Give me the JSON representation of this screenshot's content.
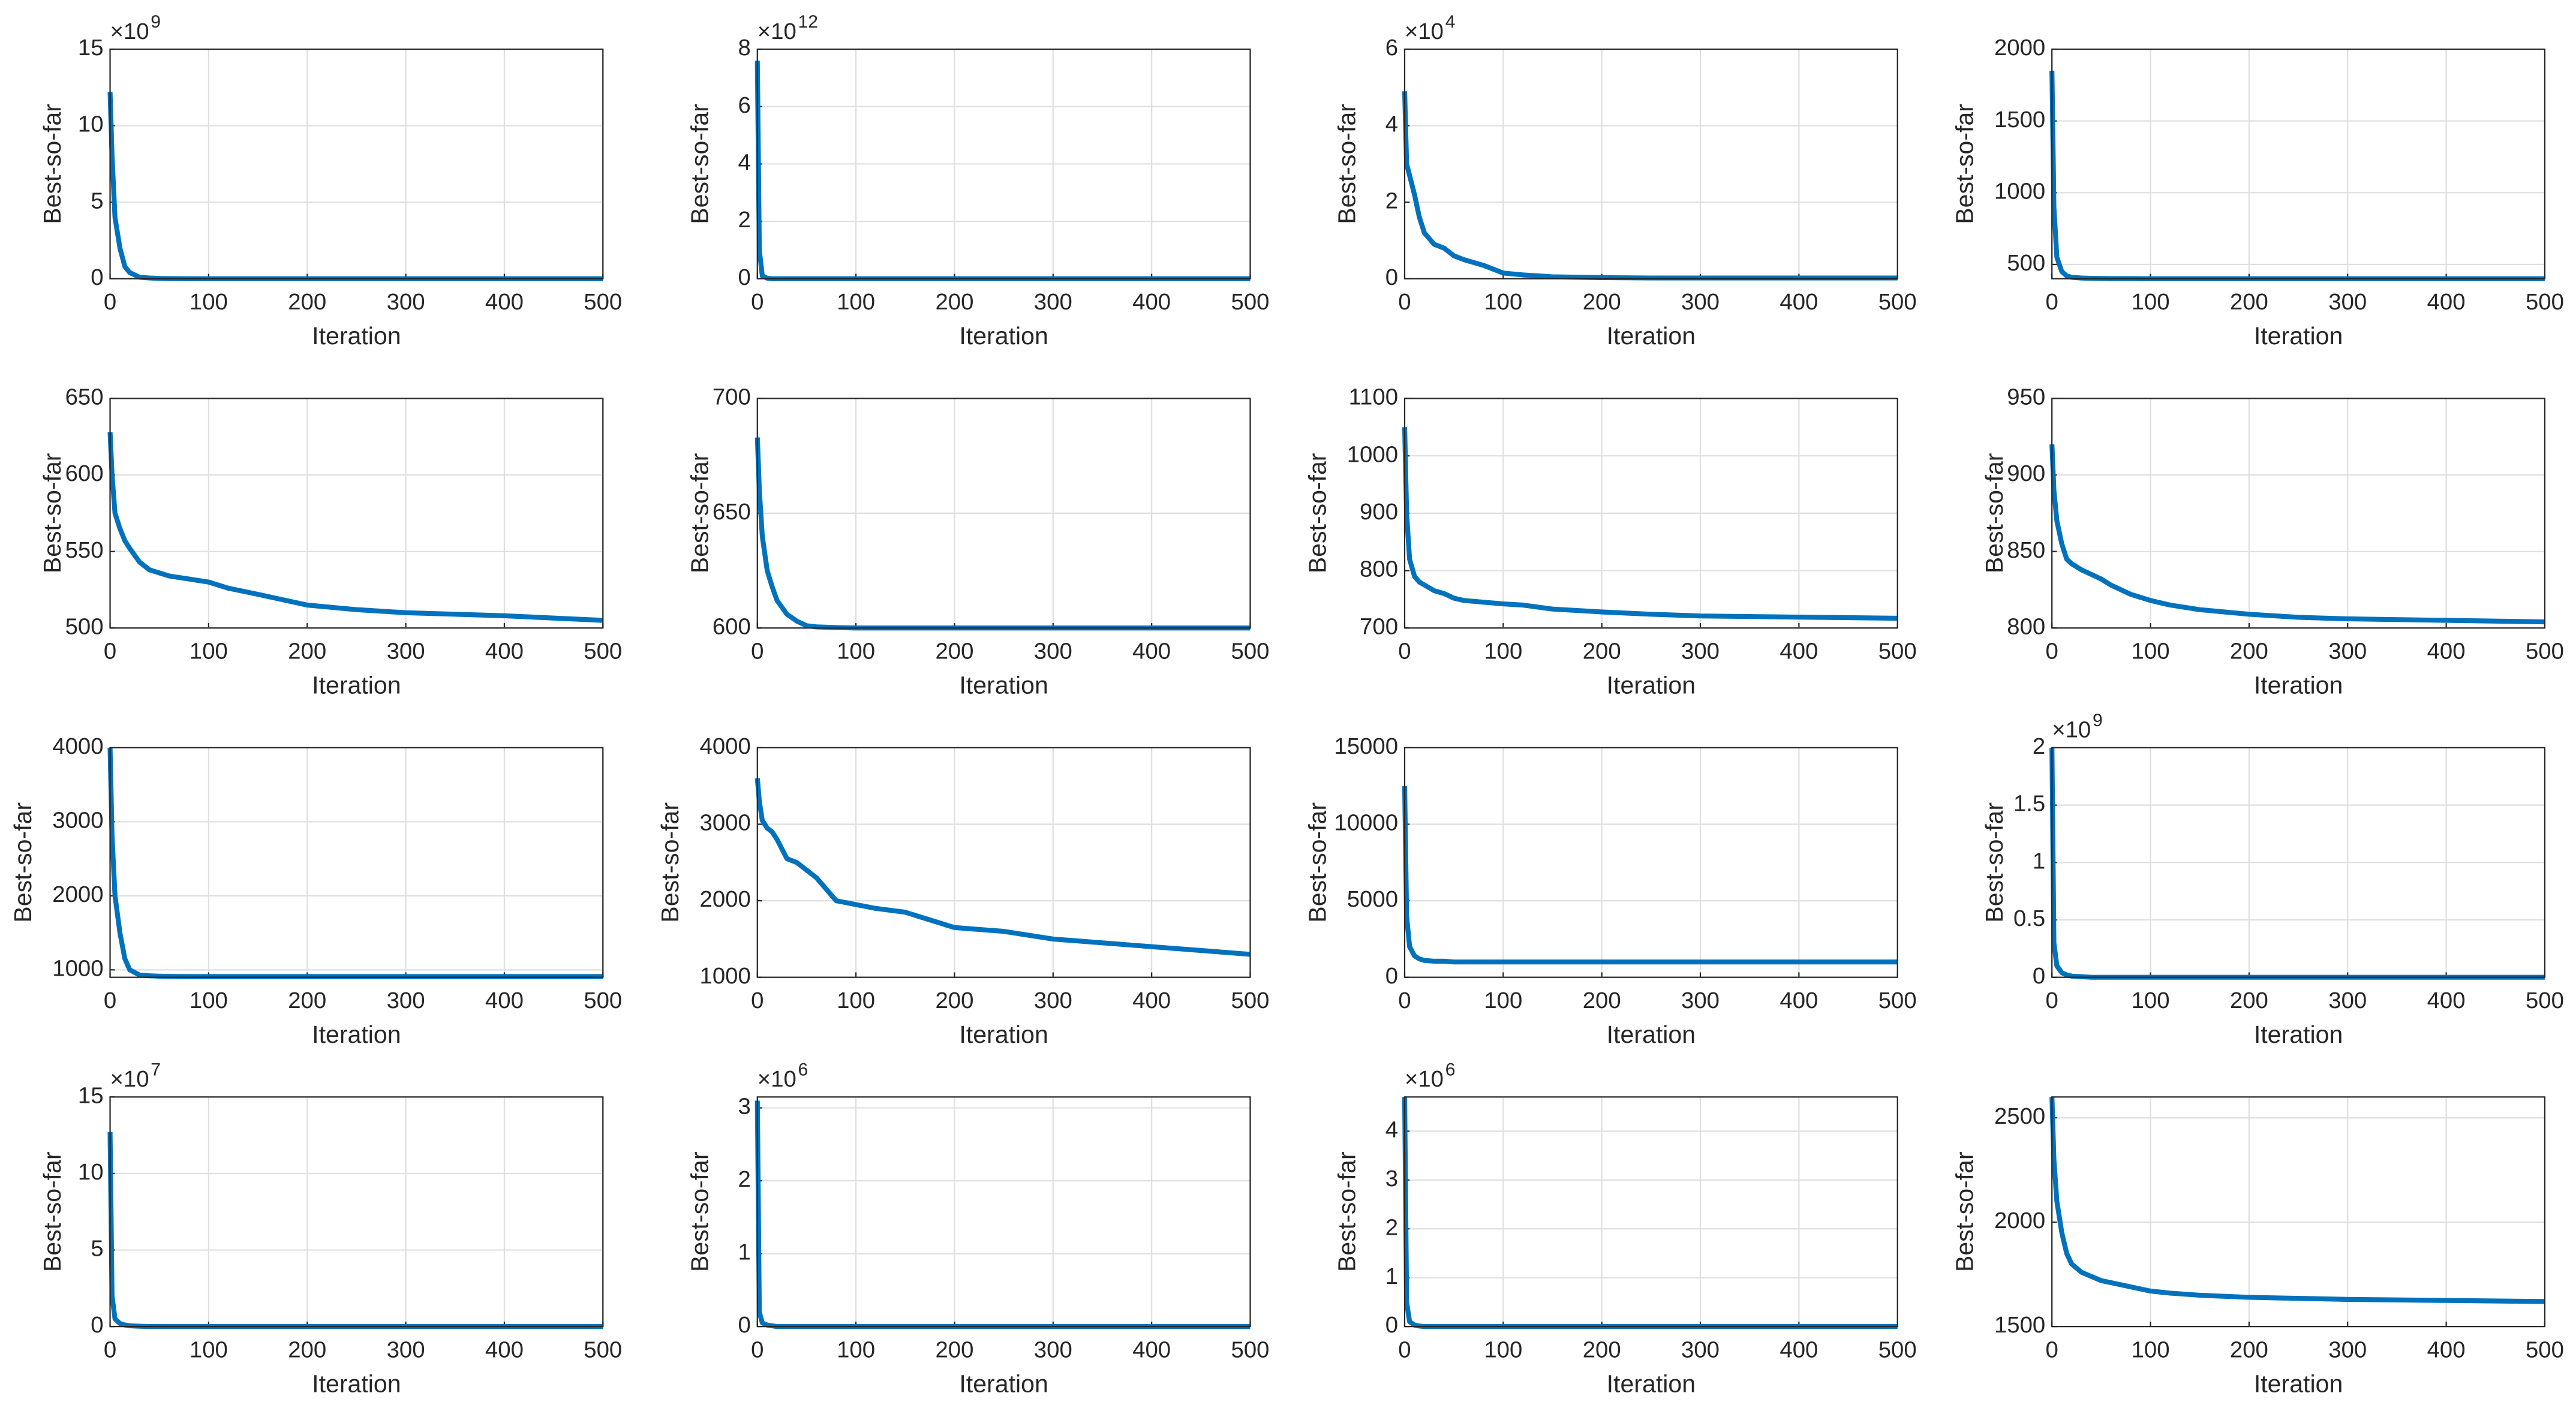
{
  "chart_data": [
    {
      "type": "line",
      "xlabel": "Iteration",
      "ylabel": "Best-so-far",
      "y_exponent_base": "×10",
      "y_exponent": "9",
      "grid": true,
      "xlim": [
        0,
        500
      ],
      "xticks": [
        0,
        100,
        200,
        300,
        400,
        500
      ],
      "ylim": [
        0,
        15
      ],
      "yticks": [
        0,
        5,
        10,
        15
      ],
      "x": [
        0,
        2,
        5,
        10,
        15,
        20,
        30,
        40,
        50,
        60,
        80,
        100,
        120,
        150,
        200,
        250,
        300,
        400,
        500
      ],
      "series": [
        {
          "color": "#0072bd",
          "values": [
            12.2,
            8,
            4,
            2,
            0.8,
            0.4,
            0.1,
            0.05,
            0.02,
            0.01,
            0,
            0,
            0,
            0,
            0,
            0,
            0,
            0,
            0
          ]
        }
      ]
    },
    {
      "type": "line",
      "xlabel": "Iteration",
      "ylabel": "Best-so-far",
      "y_exponent_base": "×10",
      "y_exponent": "12",
      "grid": true,
      "xlim": [
        0,
        500
      ],
      "xticks": [
        0,
        100,
        200,
        300,
        400,
        500
      ],
      "ylim": [
        0,
        8
      ],
      "yticks": [
        0,
        2,
        4,
        6,
        8
      ],
      "x": [
        0,
        2,
        5,
        10,
        15,
        20,
        30,
        40,
        50,
        60,
        80,
        100,
        120,
        150,
        200,
        250,
        300,
        400,
        500
      ],
      "series": [
        {
          "color": "#0072bd",
          "values": [
            7.6,
            1,
            0.1,
            0.02,
            0,
            0,
            0,
            0,
            0,
            0,
            0,
            0,
            0,
            0,
            0,
            0,
            0,
            0,
            0
          ]
        }
      ]
    },
    {
      "type": "line",
      "xlabel": "Iteration",
      "ylabel": "Best-so-far",
      "y_exponent_base": "×10",
      "y_exponent": "4",
      "grid": true,
      "xlim": [
        0,
        500
      ],
      "xticks": [
        0,
        100,
        200,
        300,
        400,
        500
      ],
      "ylim": [
        0,
        6
      ],
      "yticks": [
        0,
        2,
        4,
        6
      ],
      "x": [
        0,
        2,
        5,
        10,
        15,
        20,
        30,
        40,
        50,
        60,
        80,
        100,
        120,
        150,
        200,
        250,
        300,
        400,
        500
      ],
      "series": [
        {
          "color": "#0072bd",
          "values": [
            4.9,
            3.0,
            2.7,
            2.2,
            1.6,
            1.2,
            0.9,
            0.8,
            0.6,
            0.5,
            0.35,
            0.15,
            0.1,
            0.05,
            0.03,
            0.02,
            0.02,
            0.02,
            0.02
          ]
        }
      ]
    },
    {
      "type": "line",
      "xlabel": "Iteration",
      "ylabel": "Best-so-far",
      "grid": true,
      "xlim": [
        0,
        500
      ],
      "xticks": [
        0,
        100,
        200,
        300,
        400,
        500
      ],
      "ylim": [
        400,
        2000
      ],
      "yticks": [
        500,
        1000,
        1500,
        2000
      ],
      "x": [
        0,
        2,
        5,
        10,
        15,
        20,
        30,
        40,
        50,
        60,
        80,
        100,
        120,
        150,
        200,
        250,
        300,
        400,
        500
      ],
      "series": [
        {
          "color": "#0072bd",
          "values": [
            1850,
            900,
            550,
            450,
            420,
            410,
            405,
            403,
            402,
            401,
            401,
            400,
            400,
            400,
            400,
            400,
            400,
            400,
            400
          ]
        }
      ]
    },
    {
      "type": "line",
      "xlabel": "Iteration",
      "ylabel": "Best-so-far",
      "grid": true,
      "xlim": [
        0,
        500
      ],
      "xticks": [
        0,
        100,
        200,
        300,
        400,
        500
      ],
      "ylim": [
        500,
        650
      ],
      "yticks": [
        500,
        550,
        600,
        650
      ],
      "x": [
        0,
        2,
        5,
        10,
        15,
        20,
        30,
        40,
        50,
        60,
        80,
        100,
        120,
        150,
        200,
        250,
        300,
        400,
        500
      ],
      "series": [
        {
          "color": "#0072bd",
          "values": [
            628,
            600,
            575,
            565,
            557,
            552,
            543,
            538,
            536,
            534,
            532,
            530,
            526,
            522,
            515,
            512,
            510,
            508,
            505
          ]
        }
      ]
    },
    {
      "type": "line",
      "xlabel": "Iteration",
      "ylabel": "Best-so-far",
      "grid": true,
      "xlim": [
        0,
        500
      ],
      "xticks": [
        0,
        100,
        200,
        300,
        400,
        500
      ],
      "ylim": [
        600,
        700
      ],
      "yticks": [
        600,
        650,
        700
      ],
      "x": [
        0,
        2,
        5,
        10,
        15,
        20,
        30,
        40,
        50,
        60,
        80,
        100,
        120,
        150,
        200,
        250,
        300,
        400,
        500
      ],
      "series": [
        {
          "color": "#0072bd",
          "values": [
            683,
            660,
            640,
            625,
            618,
            612,
            606,
            603,
            601,
            600.5,
            600.2,
            600,
            600,
            600,
            600,
            600,
            600,
            600,
            600
          ]
        }
      ]
    },
    {
      "type": "line",
      "xlabel": "Iteration",
      "ylabel": "Best-so-far",
      "grid": true,
      "xlim": [
        0,
        500
      ],
      "xticks": [
        0,
        100,
        200,
        300,
        400,
        500
      ],
      "ylim": [
        700,
        1100
      ],
      "yticks": [
        700,
        800,
        900,
        1000,
        1100
      ],
      "x": [
        0,
        2,
        5,
        10,
        15,
        20,
        30,
        40,
        50,
        60,
        80,
        100,
        120,
        150,
        200,
        250,
        300,
        400,
        500
      ],
      "series": [
        {
          "color": "#0072bd",
          "values": [
            1050,
            900,
            820,
            790,
            780,
            775,
            765,
            760,
            752,
            748,
            745,
            742,
            740,
            733,
            728,
            724,
            721,
            719,
            717
          ]
        }
      ]
    },
    {
      "type": "line",
      "xlabel": "Iteration",
      "ylabel": "Best-so-far",
      "grid": true,
      "xlim": [
        0,
        500
      ],
      "xticks": [
        0,
        100,
        200,
        300,
        400,
        500
      ],
      "ylim": [
        800,
        950
      ],
      "yticks": [
        800,
        850,
        900,
        950
      ],
      "x": [
        0,
        2,
        5,
        10,
        15,
        20,
        30,
        40,
        50,
        60,
        80,
        100,
        120,
        150,
        200,
        250,
        300,
        400,
        500
      ],
      "series": [
        {
          "color": "#0072bd",
          "values": [
            920,
            890,
            870,
            855,
            845,
            842,
            838,
            835,
            832,
            828,
            822,
            818,
            815,
            812,
            809,
            807,
            806,
            805,
            804
          ]
        }
      ]
    },
    {
      "type": "line",
      "xlabel": "Iteration",
      "ylabel": "Best-so-far",
      "grid": true,
      "xlim": [
        0,
        500
      ],
      "xticks": [
        0,
        100,
        200,
        300,
        400,
        500
      ],
      "ylim": [
        900,
        4000
      ],
      "yticks": [
        1000,
        2000,
        3000,
        4000
      ],
      "x": [
        0,
        2,
        5,
        10,
        15,
        20,
        30,
        40,
        50,
        60,
        80,
        100,
        120,
        150,
        200,
        250,
        300,
        400,
        500
      ],
      "series": [
        {
          "color": "#0072bd",
          "values": [
            4000,
            2800,
            2000,
            1500,
            1150,
            1000,
            930,
            920,
            915,
            912,
            910,
            910,
            910,
            910,
            910,
            910,
            910,
            910,
            910
          ]
        }
      ]
    },
    {
      "type": "line",
      "xlabel": "Iteration",
      "ylabel": "Best-so-far",
      "grid": true,
      "xlim": [
        0,
        500
      ],
      "xticks": [
        0,
        100,
        200,
        300,
        400,
        500
      ],
      "ylim": [
        1000,
        4000
      ],
      "yticks": [
        1000,
        2000,
        3000,
        4000
      ],
      "x": [
        0,
        2,
        5,
        10,
        15,
        20,
        30,
        40,
        50,
        60,
        80,
        100,
        120,
        150,
        200,
        250,
        300,
        400,
        500
      ],
      "series": [
        {
          "color": "#0072bd",
          "values": [
            3600,
            3300,
            3050,
            2950,
            2900,
            2800,
            2550,
            2500,
            2400,
            2300,
            2000,
            1950,
            1900,
            1850,
            1650,
            1600,
            1500,
            1400,
            1300
          ]
        }
      ]
    },
    {
      "type": "line",
      "xlabel": "Iteration",
      "ylabel": "Best-so-far",
      "grid": true,
      "xlim": [
        0,
        500
      ],
      "xticks": [
        0,
        100,
        200,
        300,
        400,
        500
      ],
      "ylim": [
        0,
        15000
      ],
      "yticks": [
        0,
        5000,
        10000,
        15000
      ],
      "x": [
        0,
        2,
        5,
        10,
        15,
        20,
        30,
        40,
        50,
        60,
        80,
        100,
        120,
        150,
        200,
        250,
        300,
        400,
        500
      ],
      "series": [
        {
          "color": "#0072bd",
          "values": [
            12500,
            4000,
            2000,
            1400,
            1200,
            1100,
            1050,
            1050,
            1000,
            1000,
            1000,
            1000,
            1000,
            1000,
            1000,
            1000,
            1000,
            1000,
            1000
          ]
        }
      ]
    },
    {
      "type": "line",
      "xlabel": "Iteration",
      "ylabel": "Best-so-far",
      "y_exponent_base": "×10",
      "y_exponent": "9",
      "grid": true,
      "xlim": [
        0,
        500
      ],
      "xticks": [
        0,
        100,
        200,
        300,
        400,
        500
      ],
      "ylim": [
        0,
        2
      ],
      "yticks": [
        0,
        0.5,
        1,
        1.5,
        2
      ],
      "x": [
        0,
        2,
        5,
        10,
        15,
        20,
        30,
        40,
        50,
        60,
        80,
        100,
        120,
        150,
        200,
        250,
        300,
        400,
        500
      ],
      "series": [
        {
          "color": "#0072bd",
          "values": [
            2,
            0.3,
            0.1,
            0.04,
            0.02,
            0.01,
            0.005,
            0,
            0,
            0,
            0,
            0,
            0,
            0,
            0,
            0,
            0,
            0,
            0
          ]
        }
      ]
    },
    {
      "type": "line",
      "xlabel": "Iteration",
      "ylabel": "Best-so-far",
      "y_exponent_base": "×10",
      "y_exponent": "7",
      "grid": true,
      "xlim": [
        0,
        500
      ],
      "xticks": [
        0,
        100,
        200,
        300,
        400,
        500
      ],
      "ylim": [
        0,
        15
      ],
      "yticks": [
        0,
        5,
        10,
        15
      ],
      "x": [
        0,
        2,
        5,
        10,
        15,
        20,
        30,
        40,
        50,
        60,
        80,
        100,
        120,
        150,
        200,
        250,
        300,
        400,
        500
      ],
      "series": [
        {
          "color": "#0072bd",
          "values": [
            12.7,
            2,
            0.5,
            0.2,
            0.1,
            0.05,
            0.02,
            0,
            0,
            0,
            0,
            0,
            0,
            0,
            0,
            0,
            0,
            0,
            0
          ]
        }
      ]
    },
    {
      "type": "line",
      "xlabel": "Iteration",
      "ylabel": "Best-so-far",
      "y_exponent_base": "×10",
      "y_exponent": "6",
      "grid": true,
      "xlim": [
        0,
        500
      ],
      "xticks": [
        0,
        100,
        200,
        300,
        400,
        500
      ],
      "ylim": [
        0,
        3.15
      ],
      "yticks": [
        0,
        1,
        2,
        3
      ],
      "x": [
        0,
        2,
        5,
        10,
        15,
        20,
        30,
        40,
        50,
        60,
        80,
        100,
        120,
        150,
        200,
        250,
        300,
        400,
        500
      ],
      "series": [
        {
          "color": "#0072bd",
          "values": [
            3.1,
            0.2,
            0.05,
            0.02,
            0.01,
            0,
            0,
            0,
            0,
            0,
            0,
            0,
            0,
            0,
            0,
            0,
            0,
            0,
            0
          ]
        }
      ]
    },
    {
      "type": "line",
      "xlabel": "Iteration",
      "ylabel": "Best-so-far",
      "y_exponent_base": "×10",
      "y_exponent": "6",
      "grid": true,
      "xlim": [
        0,
        500
      ],
      "xticks": [
        0,
        100,
        200,
        300,
        400,
        500
      ],
      "ylim": [
        0,
        4.7
      ],
      "yticks": [
        0,
        1,
        2,
        3,
        4
      ],
      "x": [
        0,
        2,
        5,
        10,
        15,
        20,
        30,
        40,
        50,
        60,
        80,
        100,
        120,
        150,
        200,
        250,
        300,
        400,
        500
      ],
      "series": [
        {
          "color": "#0072bd",
          "values": [
            4.7,
            0.5,
            0.1,
            0.03,
            0.01,
            0,
            0,
            0,
            0,
            0,
            0,
            0,
            0,
            0,
            0,
            0,
            0,
            0,
            0
          ]
        }
      ]
    },
    {
      "type": "line",
      "xlabel": "Iteration",
      "ylabel": "Best-so-far",
      "grid": true,
      "xlim": [
        0,
        500
      ],
      "xticks": [
        0,
        100,
        200,
        300,
        400,
        500
      ],
      "ylim": [
        1500,
        2600
      ],
      "yticks": [
        1500,
        2000,
        2500
      ],
      "x": [
        0,
        2,
        5,
        10,
        15,
        20,
        30,
        40,
        50,
        60,
        80,
        100,
        120,
        150,
        200,
        250,
        300,
        400,
        500
      ],
      "series": [
        {
          "color": "#0072bd",
          "values": [
            2600,
            2300,
            2100,
            1950,
            1850,
            1800,
            1760,
            1740,
            1720,
            1710,
            1690,
            1670,
            1660,
            1650,
            1640,
            1635,
            1630,
            1625,
            1620
          ]
        }
      ]
    }
  ]
}
